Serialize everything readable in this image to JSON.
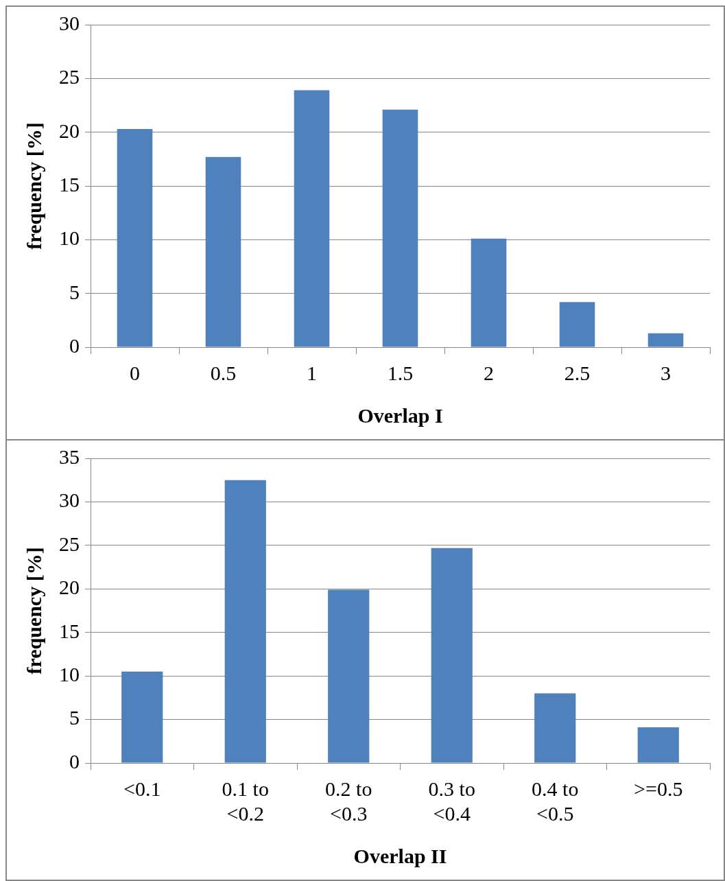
{
  "chart_data": [
    {
      "type": "bar",
      "xlabel": "Overlap I",
      "ylabel": "frequency [%]",
      "categories": [
        "0",
        "0.5",
        "1",
        "1.5",
        "2",
        "2.5",
        "3"
      ],
      "values": [
        20.3,
        17.7,
        23.9,
        22.1,
        10.1,
        4.2,
        1.3
      ],
      "color": "#4f81bd",
      "ylim": [
        0,
        30
      ],
      "yticks": [
        0,
        5,
        10,
        15,
        20,
        25,
        30
      ],
      "grid": "y",
      "legend": false
    },
    {
      "type": "bar",
      "xlabel": "Overlap II",
      "ylabel": "frequency [%]",
      "categories": [
        "<0.1",
        "0.1 to <0.2",
        "0.2 to <0.3",
        "0.3 to <0.4",
        "0.4 to <0.5",
        ">=0.5"
      ],
      "values": [
        10.5,
        32.5,
        19.9,
        24.7,
        8.0,
        4.1
      ],
      "color": "#4f81bd",
      "ylim": [
        0,
        35
      ],
      "yticks": [
        0,
        5,
        10,
        15,
        20,
        25,
        30,
        35
      ],
      "grid": "y",
      "legend": false
    }
  ]
}
